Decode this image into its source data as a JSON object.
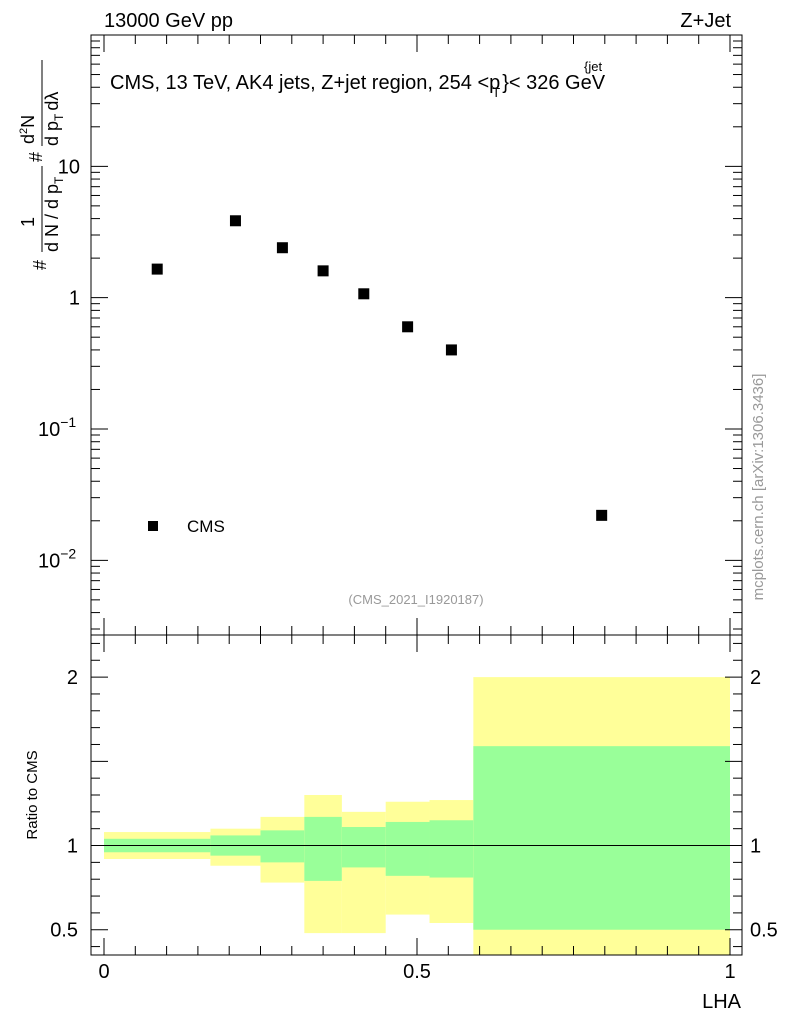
{
  "header": {
    "left": "13000 GeV pp",
    "right": "Z+Jet"
  },
  "watermark": "mcplots.cern.ch [arXiv:1306.3436]",
  "ylabel": {
    "n_hash": "#",
    "num_one": "1",
    "den_dn": "d N / d p",
    "den_sub_t": "T",
    "frac_hash": "#",
    "frac_num": "d",
    "frac_num_sup": "2",
    "frac_num_n": "N",
    "frac_den_dp": "d p",
    "frac_den_sub_t": "T",
    "frac_den_dlambda": "dλ"
  },
  "chart_data": [
    {
      "type": "scatter",
      "title": "CMS, 13 TeV, AK4 jets, Z+jet region, 254 <p",
      "title_sup": "{jet",
      "title_sub": "T",
      "title_end": "}< 326 GeV",
      "yscale": "log",
      "ylim": [
        0.0027,
        100
      ],
      "xlim": [
        -0.02,
        1.0
      ],
      "yticks": [
        {
          "value": 10,
          "label": "10"
        },
        {
          "value": 1,
          "label": "1"
        },
        {
          "value": 0.1,
          "label": "10",
          "sup": "−1"
        },
        {
          "value": 0.01,
          "label": "10",
          "sup": "−2"
        }
      ],
      "series": [
        {
          "name": "CMS",
          "marker": "square",
          "color": "#000000",
          "x": [
            0.085,
            0.21,
            0.285,
            0.35,
            0.415,
            0.485,
            0.555,
            0.795
          ],
          "y": [
            1.65,
            3.85,
            2.4,
            1.6,
            1.07,
            0.6,
            0.4,
            0.022
          ]
        }
      ],
      "legend": {
        "label": "CMS",
        "position": "bottom-left"
      },
      "annotation": "(CMS_2021_I1920187)"
    },
    {
      "type": "area",
      "ylabel": "Ratio to CMS",
      "xlabel": "LHA",
      "xlim": [
        -0.02,
        1.0
      ],
      "ylim": [
        0.35,
        2.25
      ],
      "xticks": [
        {
          "value": 0,
          "label": "0"
        },
        {
          "value": 0.5,
          "label": "0.5"
        },
        {
          "value": 1,
          "label": "1"
        }
      ],
      "yticks": [
        {
          "value": 0.5,
          "label": "0.5"
        },
        {
          "value": 1,
          "label": "1"
        },
        {
          "value": 2,
          "label": "2"
        }
      ],
      "reference_line": 1,
      "bands": {
        "stat_color": "#99ff99",
        "total_color": "#ffff99",
        "bins": [
          {
            "lo": 0.0,
            "hi": 0.17,
            "stat": [
              0.96,
              1.04
            ],
            "total": [
              0.92,
              1.08
            ]
          },
          {
            "lo": 0.17,
            "hi": 0.25,
            "stat": [
              0.94,
              1.06
            ],
            "total": [
              0.88,
              1.1
            ]
          },
          {
            "lo": 0.25,
            "hi": 0.32,
            "stat": [
              0.9,
              1.09
            ],
            "total": [
              0.78,
              1.17
            ]
          },
          {
            "lo": 0.32,
            "hi": 0.38,
            "stat": [
              0.79,
              1.17
            ],
            "total": [
              0.48,
              1.3
            ]
          },
          {
            "lo": 0.38,
            "hi": 0.45,
            "stat": [
              0.87,
              1.11
            ],
            "total": [
              0.48,
              1.2
            ]
          },
          {
            "lo": 0.45,
            "hi": 0.52,
            "stat": [
              0.82,
              1.14
            ],
            "total": [
              0.59,
              1.26
            ]
          },
          {
            "lo": 0.52,
            "hi": 0.59,
            "stat": [
              0.81,
              1.15
            ],
            "total": [
              0.54,
              1.27
            ]
          },
          {
            "lo": 0.59,
            "hi": 1.0,
            "stat": [
              0.5,
              1.59
            ],
            "total": [
              0.35,
              2.0
            ]
          }
        ]
      }
    }
  ]
}
